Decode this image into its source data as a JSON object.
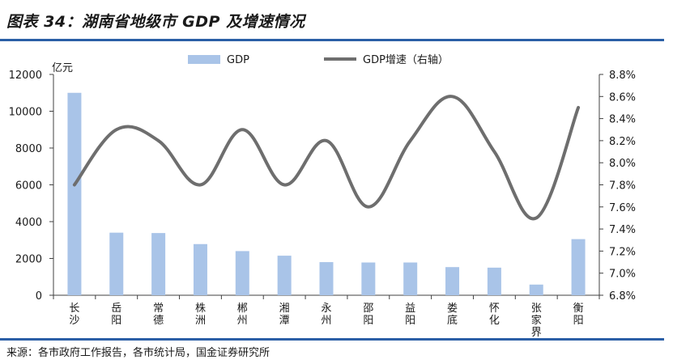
{
  "title": "图表 34：湖南省地级市 GDP 及增速情况",
  "source": "来源：各市政府工作报告，各市统计局，国金证券研究所",
  "colors": {
    "bar": "#a9c4e8",
    "line": "#6e6e6e",
    "rule": "#2b5fa6",
    "axis": "#404040"
  },
  "chart_data": {
    "type": "bar+line",
    "categories": [
      "长沙",
      "岳阳",
      "常德",
      "株洲",
      "郴州",
      "湘潭",
      "永州",
      "邵阳",
      "益阳",
      "娄底",
      "怀化",
      "张家界",
      "衡阳"
    ],
    "series": [
      {
        "name": "GDP",
        "type": "bar",
        "axis": "left",
        "values": [
          11000,
          3400,
          3380,
          2780,
          2400,
          2150,
          1800,
          1780,
          1780,
          1530,
          1500,
          580,
          3050
        ]
      },
      {
        "name": "GDP增速（右轴）",
        "type": "line",
        "axis": "right",
        "values": [
          7.8,
          8.3,
          8.2,
          7.8,
          8.3,
          7.8,
          8.2,
          7.6,
          8.2,
          8.6,
          8.1,
          7.5,
          8.5
        ]
      }
    ],
    "y_left": {
      "label": "亿元",
      "min": 0,
      "max": 12000,
      "ticks": [
        "0",
        "2000",
        "4000",
        "6000",
        "8000",
        "10000",
        "12000"
      ]
    },
    "y_right": {
      "min": 6.8,
      "max": 8.8,
      "ticks": [
        "6.8%",
        "7.0%",
        "7.2%",
        "7.4%",
        "7.6%",
        "7.8%",
        "8.0%",
        "8.2%",
        "8.4%",
        "8.6%",
        "8.8%"
      ]
    },
    "legend_position": "top",
    "grid": false
  }
}
